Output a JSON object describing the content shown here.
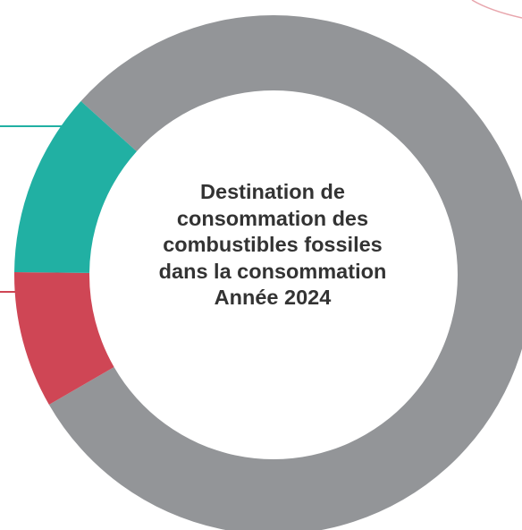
{
  "chart_data": {
    "type": "pie",
    "variant": "donut",
    "title_lines": [
      "Destination de",
      "consommation des",
      "combustibles fossiles",
      "dans la consommation",
      "Année 2024"
    ],
    "slices": [
      {
        "value": 80.0,
        "color": "#939598"
      },
      {
        "value": 8.5,
        "color": "#cf4655"
      },
      {
        "value": 11.5,
        "color": "#21b0a3"
      }
    ],
    "legend": "none"
  },
  "colors": {
    "background": "#ffffff",
    "title": "#333333",
    "leader_lines": [
      "#21b0a3",
      "#cf4655"
    ],
    "corner_arc": "#e8a6ad"
  }
}
